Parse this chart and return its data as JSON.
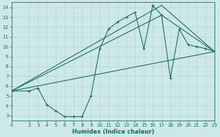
{
  "xlabel": "Humidex (Indice chaleur)",
  "bg_color": "#cce8e8",
  "grid_color": "#b8d8d8",
  "line_color": "#1a6b5a",
  "xlim": [
    0,
    23
  ],
  "ylim": [
    2.5,
    14.5
  ],
  "xticks": [
    0,
    2,
    3,
    4,
    5,
    6,
    7,
    8,
    9,
    10,
    11,
    12,
    13,
    14,
    15,
    16,
    17,
    18,
    19,
    20,
    21,
    22,
    23
  ],
  "yticks": [
    3,
    4,
    5,
    6,
    7,
    8,
    9,
    10,
    11,
    12,
    13,
    14
  ],
  "line1_x": [
    0,
    2,
    3,
    4,
    5,
    6,
    7,
    8,
    9,
    10,
    11,
    12,
    13,
    14,
    15,
    16,
    17,
    18,
    19,
    20,
    21,
    22,
    23
  ],
  "line1_y": [
    5.5,
    5.5,
    5.8,
    4.1,
    3.5,
    2.9,
    2.9,
    2.9,
    5.0,
    9.8,
    11.8,
    12.5,
    13.0,
    13.5,
    9.8,
    14.2,
    13.2,
    6.8,
    11.8,
    10.2,
    10.0,
    9.8,
    9.5
  ],
  "line2_x": [
    0,
    23
  ],
  "line2_y": [
    5.5,
    9.5
  ],
  "line3_x": [
    0,
    17,
    23
  ],
  "line3_y": [
    5.5,
    13.2,
    9.5
  ],
  "line4_x": [
    0,
    17,
    23
  ],
  "line4_y": [
    5.5,
    14.2,
    9.5
  ]
}
